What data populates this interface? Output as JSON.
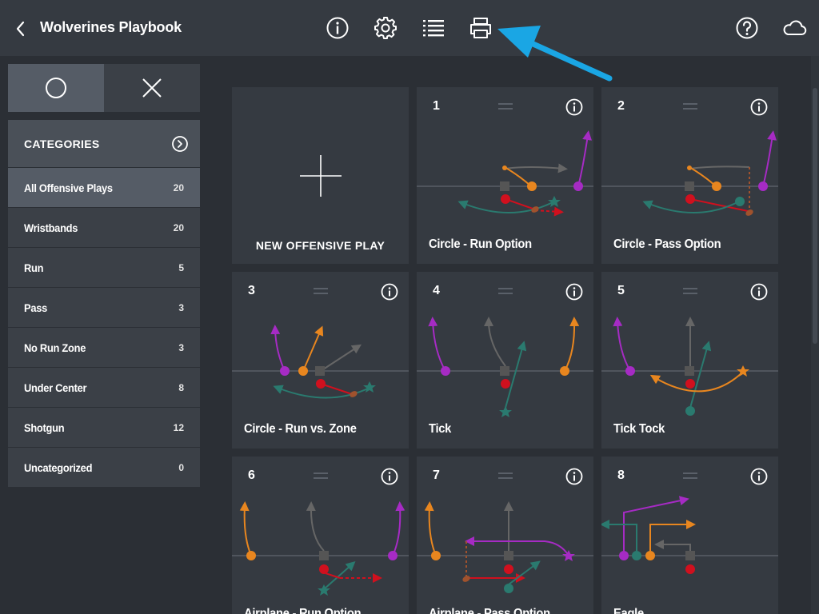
{
  "header": {
    "title": "Wolverines Playbook",
    "icons": [
      "back-chevron-icon",
      "info-icon",
      "settings-gear-icon",
      "list-icon",
      "print-icon",
      "help-icon",
      "cloud-icon"
    ],
    "annotation_color": "#1aa6e4"
  },
  "segmented": {
    "options": [
      "offense-circle-icon",
      "defense-x-icon"
    ],
    "selected": "offense-circle-icon"
  },
  "categories": {
    "title": "CATEGORIES",
    "items": [
      {
        "name": "All Offensive Plays",
        "count": "20",
        "active": true
      },
      {
        "name": "Wristbands",
        "count": "20"
      },
      {
        "name": "Run",
        "count": "5"
      },
      {
        "name": "Pass",
        "count": "3"
      },
      {
        "name": "No Run Zone",
        "count": "3"
      },
      {
        "name": "Under Center",
        "count": "8"
      },
      {
        "name": "Shotgun",
        "count": "12"
      },
      {
        "name": "Uncategorized",
        "count": "0"
      }
    ]
  },
  "new_play": {
    "label": "NEW OFFENSIVE PLAY"
  },
  "plays": [
    {
      "number": "1",
      "name": "Circle - Run Option"
    },
    {
      "number": "2",
      "name": "Circle - Pass Option"
    },
    {
      "number": "3",
      "name": "Circle - Run vs. Zone"
    },
    {
      "number": "4",
      "name": "Tick"
    },
    {
      "number": "5",
      "name": "Tick Tock"
    },
    {
      "number": "6",
      "name": "Airplane - Run Option"
    },
    {
      "number": "7",
      "name": "Airplane - Pass Option"
    },
    {
      "number": "8",
      "name": "Eagle"
    }
  ],
  "colors": {
    "background": "#2b2f35",
    "card": "#353a41",
    "player_x": "#e8861f",
    "player_y": "#a62bc4",
    "player_z": "#2a7a6f",
    "player_q": "#d0101e",
    "center": "#555555",
    "ball": "#a0522d"
  }
}
